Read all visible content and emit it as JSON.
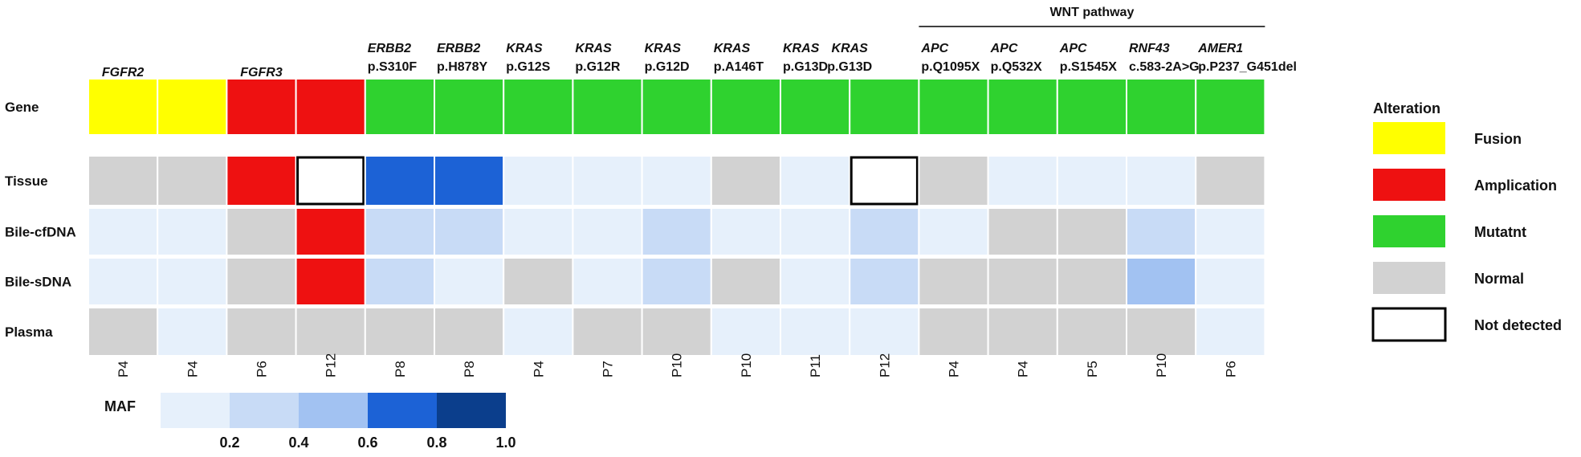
{
  "chart_data": {
    "type": "heatmap",
    "title": "",
    "group_label": "WNT pathway",
    "rows": [
      "Gene",
      "Tissue",
      "Bile-cfDNA",
      "Bile-sDNA",
      "Plasma"
    ],
    "columns": [
      {
        "patient": "P4",
        "gene": "FGFR2",
        "variant": ""
      },
      {
        "patient": "P4",
        "gene": "",
        "variant": ""
      },
      {
        "patient": "P6",
        "gene": "FGFR3",
        "variant": ""
      },
      {
        "patient": "P12",
        "gene": "",
        "variant": ""
      },
      {
        "patient": "P8",
        "gene": "ERBB2",
        "variant": "p.S310F"
      },
      {
        "patient": "P8",
        "gene": "ERBB2",
        "variant": "p.H878Y"
      },
      {
        "patient": "P4",
        "gene": "KRAS",
        "variant": "p.G12S"
      },
      {
        "patient": "P7",
        "gene": "KRAS",
        "variant": "p.G12R"
      },
      {
        "patient": "P10",
        "gene": "KRAS",
        "variant": "p.G12D"
      },
      {
        "patient": "P10",
        "gene": "KRAS",
        "variant": "p.A146T"
      },
      {
        "patient": "P11",
        "gene": "KRAS",
        "variant": "p.G13D"
      },
      {
        "patient": "P12",
        "gene": "",
        "variant": ""
      },
      {
        "patient": "P4",
        "gene": "APC",
        "variant": "p.Q1095X"
      },
      {
        "patient": "P4",
        "gene": "APC",
        "variant": "p.Q532X"
      },
      {
        "patient": "P5",
        "gene": "APC",
        "variant": "p.S1545X"
      },
      {
        "patient": "P10",
        "gene": "RNF43",
        "variant": "c.583-2A>G"
      },
      {
        "patient": "P6",
        "gene": "AMER1",
        "variant": "p.P237_G451del"
      }
    ],
    "cells": {
      "Gene": [
        "Fusion",
        "Fusion",
        "Amplication",
        "Amplication",
        "Mutatnt",
        "Mutatnt",
        "Mutatnt",
        "Mutatnt",
        "Mutatnt",
        "Mutatnt",
        "Mutatnt",
        "Mutatnt",
        "Mutatnt",
        "Mutatnt",
        "Mutatnt",
        "Mutatnt",
        "Mutatnt"
      ],
      "Tissue": [
        "Normal",
        "Normal",
        "Amplication",
        "Not detected",
        0.7,
        0.7,
        0.1,
        0.1,
        0.1,
        "Normal",
        0.1,
        "Not detected",
        "Normal",
        0.1,
        0.1,
        0.1,
        "Normal"
      ],
      "Bile-cfDNA": [
        0.1,
        0.1,
        "Normal",
        "Amplication",
        0.3,
        0.3,
        0.1,
        0.1,
        0.3,
        0.1,
        0.1,
        0.3,
        0.1,
        "Normal",
        "Normal",
        0.3,
        0.1
      ],
      "Bile-sDNA": [
        0.1,
        0.1,
        "Normal",
        "Amplication",
        0.3,
        0.1,
        "Normal",
        0.1,
        0.3,
        "Normal",
        0.1,
        0.3,
        "Normal",
        "Normal",
        "Normal",
        0.5,
        0.1
      ],
      "Plasma": [
        "Normal",
        0.1,
        "Normal",
        "Normal",
        "Normal",
        "Normal",
        0.1,
        "Normal",
        "Normal",
        0.1,
        0.1,
        0.1,
        "Normal",
        "Normal",
        "Normal",
        "Normal",
        0.1
      ]
    },
    "alteration_legend": {
      "title": "Alteration",
      "items": [
        {
          "label": "Fusion",
          "color": "#ffff00"
        },
        {
          "label": "Amplication",
          "color": "#ee1111"
        },
        {
          "label": "Mutatnt",
          "color": "#2fd22f"
        },
        {
          "label": "Normal",
          "color": "#d2d2d2"
        },
        {
          "label": "Not detected",
          "color": "#ffffff"
        }
      ]
    },
    "maf_legend": {
      "title": "MAF",
      "colors": [
        "#e6f0fb",
        "#c8dbf6",
        "#a2c2f2",
        "#1c62d6",
        "#0b3e8c"
      ],
      "ticks": [
        "0.2",
        "0.4",
        "0.6",
        "0.8",
        "1.0"
      ]
    }
  }
}
